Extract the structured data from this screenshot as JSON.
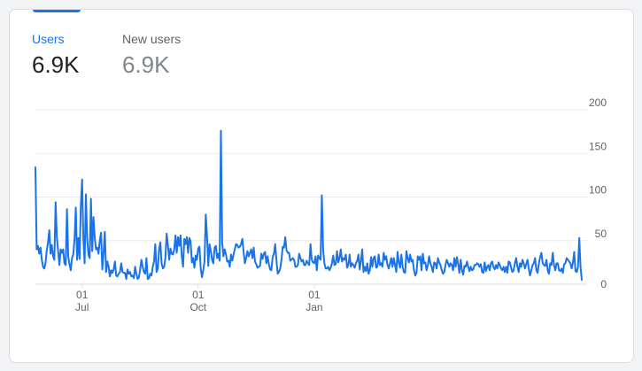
{
  "metrics": {
    "users": {
      "label": "Users",
      "value": "6.9K"
    },
    "new_users": {
      "label": "New users",
      "value": "6.9K"
    }
  },
  "colors": {
    "accent": "#1a73e8",
    "grid": "#e8eaed",
    "text": "#202124",
    "muted": "#80868b"
  },
  "chart_data": {
    "type": "line",
    "title": "",
    "xlabel": "",
    "ylabel": "",
    "ylim": [
      0,
      200
    ],
    "y_ticks": [
      0,
      50,
      100,
      150,
      200
    ],
    "x_ticks": [
      {
        "day": 37,
        "top": "01",
        "bottom": "Jul"
      },
      {
        "day": 129,
        "top": "01",
        "bottom": "Oct"
      },
      {
        "day": 221,
        "top": "01",
        "bottom": "Jan"
      }
    ],
    "grid": true,
    "legend": "none",
    "series": [
      {
        "values": [
          134,
          40,
          44,
          35,
          42,
          29,
          20,
          18,
          24,
          39,
          48,
          62,
          35,
          45,
          32,
          28,
          94,
          54,
          38,
          22,
          40,
          36,
          40,
          24,
          22,
          86,
          32,
          23,
          16,
          30,
          34,
          52,
          88,
          28,
          53,
          29,
          91,
          120,
          52,
          24,
          103,
          54,
          34,
          30,
          98,
          38,
          77,
          54,
          40,
          42,
          35,
          50,
          59,
          17,
          36,
          60,
          14,
          26,
          20,
          9,
          16,
          13,
          17,
          26,
          10,
          9,
          12,
          14,
          24,
          14,
          13,
          13,
          6,
          17,
          12,
          14,
          9,
          10,
          7,
          20,
          12,
          6,
          8,
          17,
          28,
          20,
          14,
          12,
          30,
          6,
          7,
          12,
          10,
          20,
          26,
          46,
          14,
          18,
          40,
          48,
          24,
          18,
          20,
          30,
          58,
          45,
          28,
          41,
          35,
          34,
          40,
          56,
          36,
          54,
          44,
          56,
          32,
          20,
          52,
          46,
          54,
          36,
          53,
          49,
          25,
          30,
          19,
          33,
          28,
          41,
          43,
          18,
          8,
          16,
          26,
          80,
          55,
          21,
          46,
          38,
          28,
          24,
          42,
          44,
          30,
          35,
          27,
          176,
          48,
          32,
          40,
          34,
          26,
          27,
          20,
          34,
          27,
          34,
          40,
          46,
          45,
          42,
          43,
          46,
          52,
          37,
          24,
          30,
          38,
          32,
          36,
          40,
          30,
          42,
          26,
          23,
          19,
          20,
          21,
          35,
          29,
          35,
          37,
          24,
          32,
          23,
          17,
          16,
          31,
          35,
          46,
          28,
          12,
          14,
          18,
          28,
          43,
          42,
          54,
          39,
          36,
          36,
          27,
          28,
          30,
          28,
          20,
          20,
          22,
          35,
          30,
          26,
          28,
          22,
          22,
          27,
          24,
          22,
          46,
          28,
          25,
          24,
          32,
          16,
          33,
          30,
          28,
          102,
          40,
          24,
          18,
          18,
          20,
          16,
          19,
          24,
          33,
          22,
          23,
          38,
          25,
          30,
          40,
          26,
          30,
          28,
          34,
          19,
          22,
          34,
          20,
          24,
          22,
          19,
          24,
          27,
          34,
          17,
          27,
          40,
          14,
          20,
          15,
          24,
          12,
          16,
          31,
          20,
          30,
          32,
          19,
          20,
          34,
          22,
          24,
          20,
          36,
          28,
          32,
          22,
          18,
          24,
          30,
          20,
          30,
          22,
          14,
          37,
          25,
          19,
          34,
          20,
          14,
          13,
          38,
          30,
          25,
          34,
          26,
          28,
          16,
          10,
          13,
          32,
          28,
          32,
          16,
          35,
          24,
          25,
          16,
          22,
          32,
          24,
          20,
          14,
          25,
          24,
          18,
          30,
          25,
          22,
          16,
          12,
          14,
          22,
          28,
          24,
          20,
          24,
          22,
          16,
          30,
          20,
          31,
          23,
          13,
          28,
          16,
          11,
          21,
          20,
          26,
          20,
          15,
          20,
          16,
          17,
          22,
          22,
          24,
          23,
          20,
          23,
          14,
          13,
          25,
          15,
          20,
          22,
          16,
          24,
          26,
          20,
          17,
          22,
          18,
          25,
          22,
          18,
          16,
          20,
          14,
          20,
          13,
          26,
          25,
          19,
          14,
          16,
          24,
          30,
          20,
          14,
          24,
          20,
          28,
          24,
          18,
          23,
          28,
          18,
          10,
          16,
          22,
          24,
          30,
          16,
          13,
          24,
          31,
          36,
          24,
          22,
          21,
          28,
          16,
          12,
          24,
          22,
          36,
          22,
          16,
          24,
          24,
          16,
          15,
          18,
          13,
          23,
          24,
          30,
          28,
          26,
          24,
          18,
          25,
          37,
          15,
          14,
          20,
          53,
          20,
          5
        ]
      }
    ]
  }
}
